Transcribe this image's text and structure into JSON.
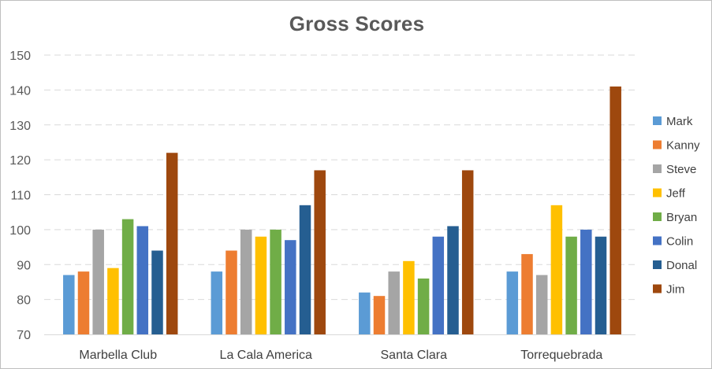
{
  "chart_data": {
    "type": "bar",
    "title": "Gross Scores",
    "xlabel": "",
    "ylabel": "",
    "ylim": [
      70,
      150
    ],
    "yticks": [
      70,
      80,
      90,
      100,
      110,
      120,
      130,
      140,
      150
    ],
    "grid": true,
    "legend_position": "right",
    "categories": [
      "Marbella Club",
      "La Cala America",
      "Santa Clara",
      "Torrequebrada"
    ],
    "series": [
      {
        "name": "Mark",
        "color": "#5b9bd5",
        "values": [
          87,
          88,
          82,
          88
        ]
      },
      {
        "name": "Kanny",
        "color": "#ed7d31",
        "values": [
          88,
          94,
          81,
          93
        ]
      },
      {
        "name": "Steve",
        "color": "#a5a5a5",
        "values": [
          100,
          100,
          88,
          87
        ]
      },
      {
        "name": "Jeff",
        "color": "#ffc000",
        "values": [
          89,
          98,
          91,
          107
        ]
      },
      {
        "name": "Bryan",
        "color": "#70ad47",
        "values": [
          103,
          100,
          86,
          98
        ]
      },
      {
        "name": "Colin",
        "color": "#4472c4",
        "values": [
          101,
          97,
          98,
          100
        ]
      },
      {
        "name": "Donal",
        "color": "#255e91",
        "values": [
          94,
          107,
          101,
          98
        ]
      },
      {
        "name": "Jim",
        "color": "#9e480e",
        "values": [
          122,
          117,
          117,
          141
        ]
      }
    ]
  }
}
